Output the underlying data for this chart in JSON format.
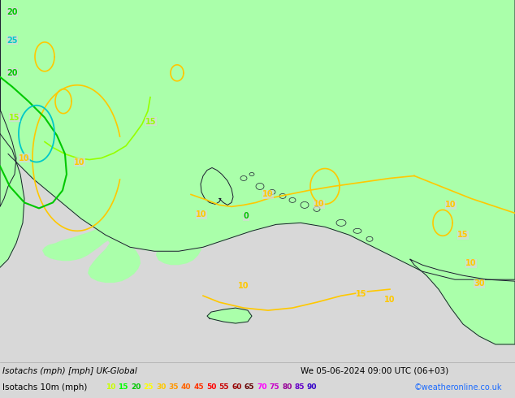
{
  "title_line1": "Isotachs (mph) [mph] UK-Global",
  "title_line2": "We 05-06-2024 09:00 UTC (06+03)",
  "legend_label": "Isotachs 10m (mph)",
  "credit": "©weatheronline.co.uk",
  "legend_values": [
    10,
    15,
    20,
    25,
    30,
    35,
    40,
    45,
    50,
    55,
    60,
    65,
    70,
    75,
    80,
    85,
    90
  ],
  "bar_colors": [
    "#c8ff00",
    "#00ff00",
    "#00c800",
    "#ffff00",
    "#ffc800",
    "#ff9600",
    "#ff6400",
    "#ff3200",
    "#ff0000",
    "#c80000",
    "#960000",
    "#640000",
    "#ff00ff",
    "#c800c8",
    "#960096",
    "#6400c8",
    "#3200c8"
  ],
  "bg_color": "#d8d8d8",
  "sea_color": "#d8d8d8",
  "land_color": "#aaffaa",
  "border_color": "#1a1a2e",
  "contour_yellow": "#ffc800",
  "contour_green_light": "#96ff00",
  "contour_green": "#00c800",
  "contour_cyan": "#00c8c8",
  "bottom_bg": "#d0d0d0"
}
